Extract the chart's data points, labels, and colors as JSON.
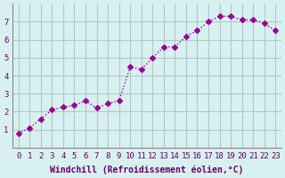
{
  "x": [
    0,
    1,
    2,
    3,
    4,
    5,
    6,
    7,
    8,
    9,
    10,
    11,
    12,
    13,
    14,
    15,
    16,
    17,
    18,
    19,
    20,
    21,
    22,
    23
  ],
  "y": [
    0.8,
    1.1,
    1.6,
    2.1,
    2.25,
    2.35,
    2.6,
    2.2,
    2.45,
    2.6,
    4.5,
    4.35,
    5.0,
    5.6,
    5.6,
    6.2,
    6.5,
    7.0,
    7.3,
    7.3,
    7.1,
    7.1,
    6.9,
    6.5
  ],
  "line_color": "#990099",
  "marker": "D",
  "marker_size": 3,
  "bg_color": "#d8f0f0",
  "grid_color": "#b0c8c8",
  "xlabel": "Windchill (Refroidissement éolien,°C)",
  "ylabel": "",
  "xlim": [
    -0.5,
    23.5
  ],
  "ylim": [
    0,
    8
  ],
  "yticks": [
    1,
    2,
    3,
    4,
    5,
    6,
    7
  ],
  "xticks": [
    0,
    1,
    2,
    3,
    4,
    5,
    6,
    7,
    8,
    9,
    10,
    11,
    12,
    13,
    14,
    15,
    16,
    17,
    18,
    19,
    20,
    21,
    22,
    23
  ],
  "xlabel_fontsize": 7,
  "tick_fontsize": 6.5,
  "axis_color": "#660066",
  "spine_color": "#888888"
}
